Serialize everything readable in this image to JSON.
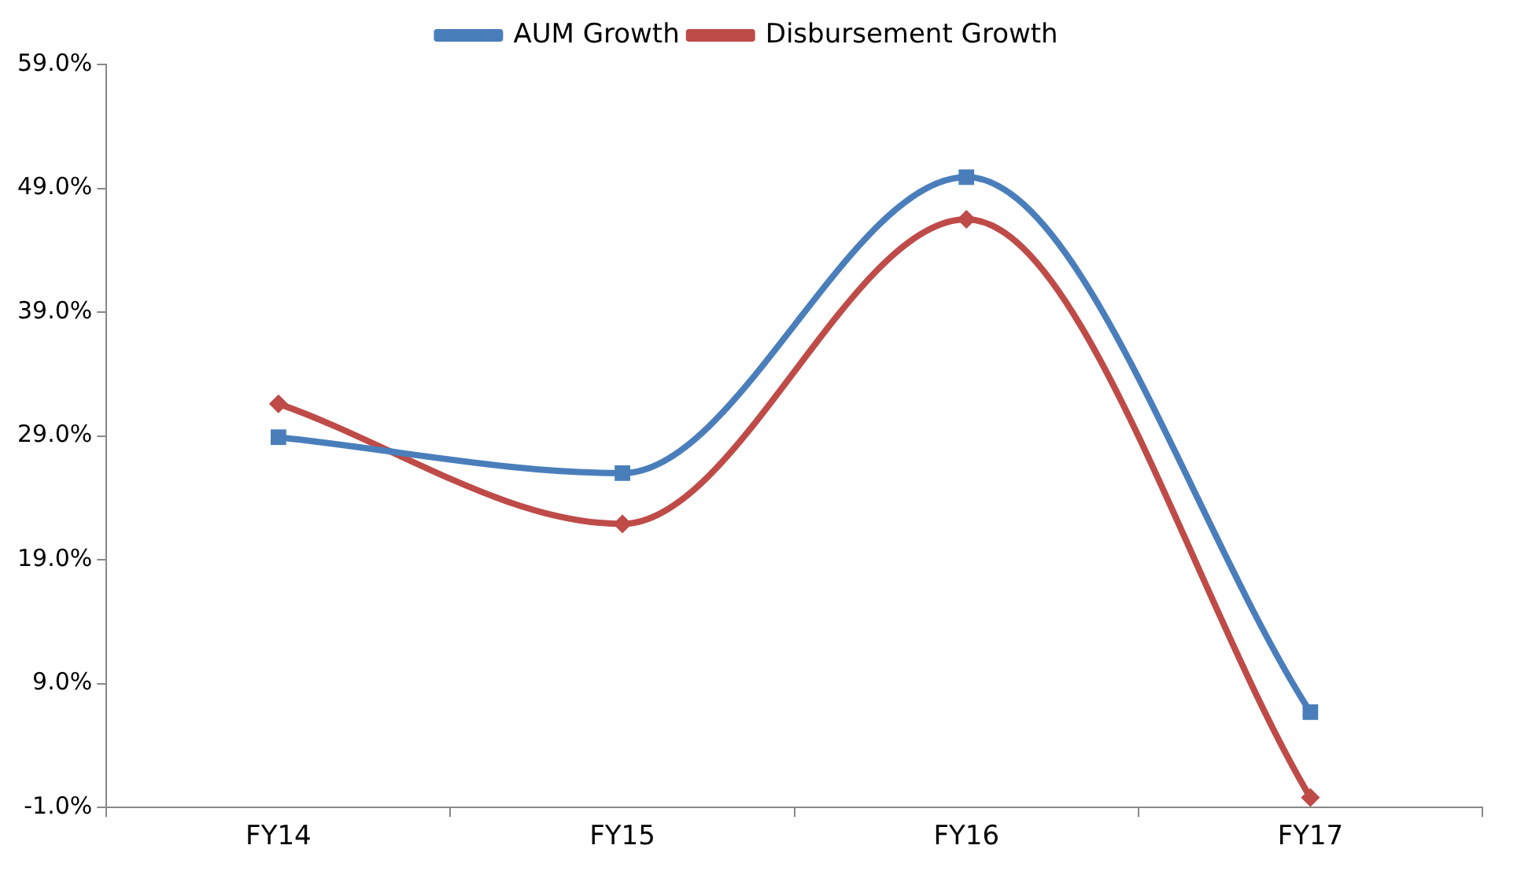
{
  "chart_data": {
    "type": "line",
    "categories": [
      "FY14",
      "FY15",
      "FY16",
      "FY17"
    ],
    "series": [
      {
        "name": "AUM Growth",
        "color": "#4a7ebb",
        "marker": "square",
        "values": [
          28.9,
          26.0,
          49.9,
          6.7
        ]
      },
      {
        "name": "Disbursement Growth",
        "color": "#be4b48",
        "marker": "diamond",
        "values": [
          31.6,
          21.9,
          46.5,
          -0.2
        ]
      }
    ],
    "ylim": [
      -1,
      59
    ],
    "yticks": [
      {
        "value": -1,
        "label": "-1.0%"
      },
      {
        "value": 9,
        "label": "9.0%"
      },
      {
        "value": 19,
        "label": "19.0%"
      },
      {
        "value": 29,
        "label": "29.0%"
      },
      {
        "value": 39,
        "label": "39.0%"
      },
      {
        "value": 49,
        "label": "49.0%"
      },
      {
        "value": 59,
        "label": "59.0%"
      }
    ],
    "grid": false,
    "legend": "top"
  }
}
